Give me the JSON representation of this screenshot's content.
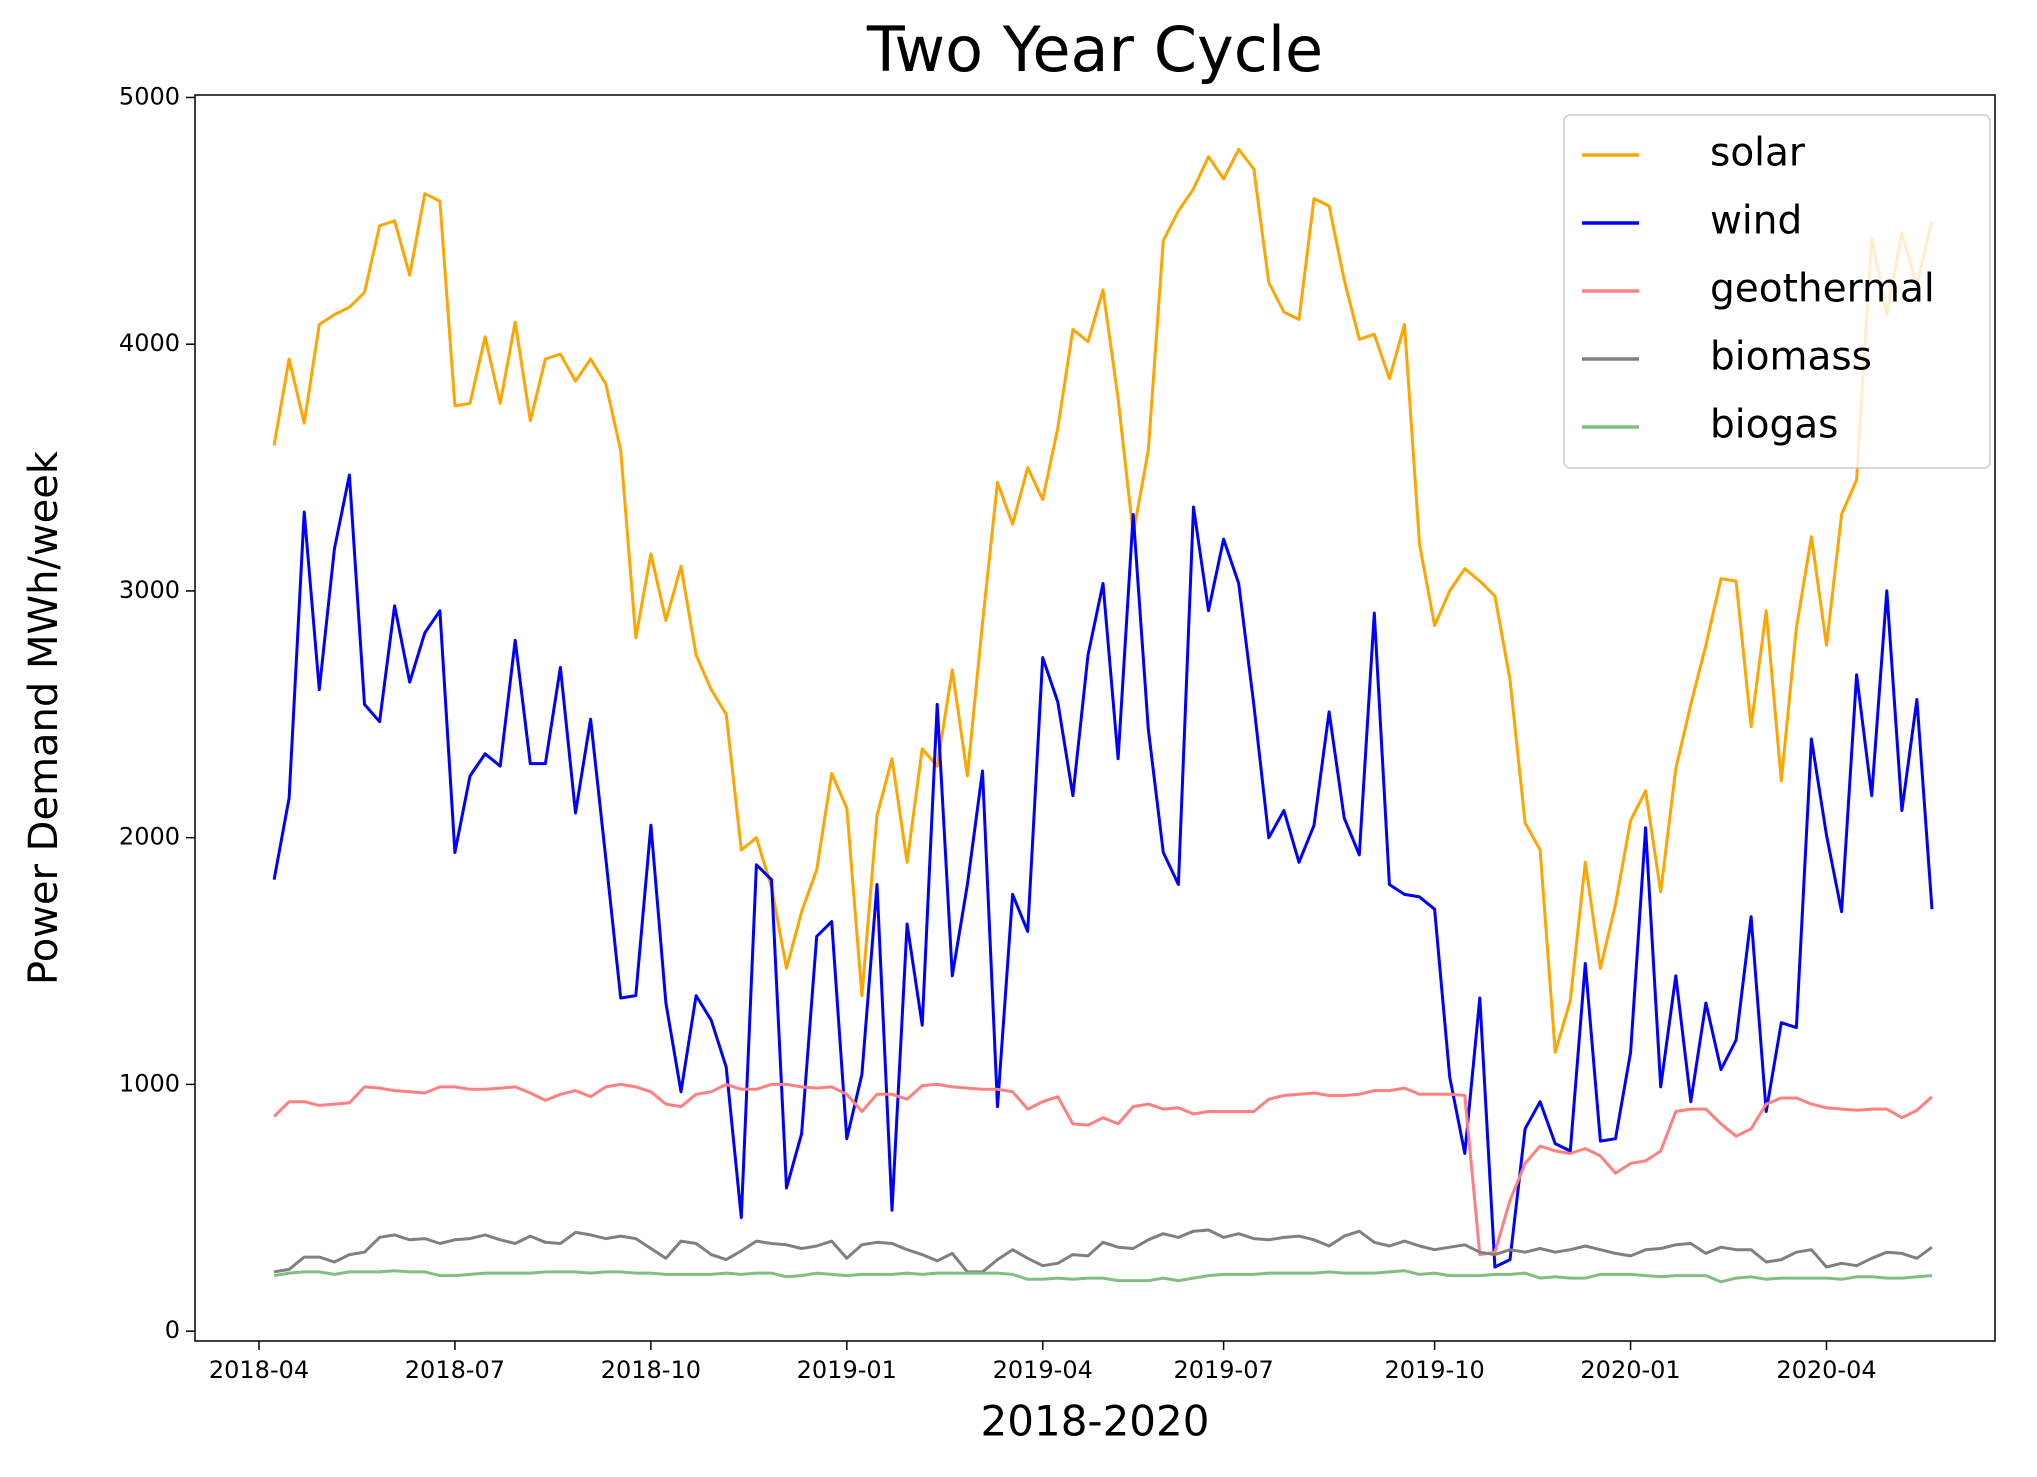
{
  "chart_data": {
    "type": "line",
    "title": "Two Year Cycle",
    "x_label": "2018-2020",
    "y_label": "Power Demand MWh/week",
    "categories": [
      "2018-04",
      null,
      null,
      null,
      null,
      null,
      null,
      null,
      null,
      null,
      null,
      null,
      null,
      "2018-07",
      null,
      null,
      null,
      null,
      null,
      null,
      null,
      null,
      null,
      null,
      null,
      null,
      "2018-10",
      null,
      null,
      null,
      null,
      null,
      null,
      null,
      null,
      null,
      null,
      null,
      null,
      "2019-01",
      null,
      null,
      null,
      null,
      null,
      null,
      null,
      null,
      null,
      null,
      null,
      null,
      "2019-04",
      null,
      null,
      null,
      null,
      null,
      null,
      null,
      null,
      null,
      null,
      null,
      "2019-07",
      null,
      null,
      null,
      null,
      null,
      null,
      null,
      null,
      null,
      null,
      null,
      null,
      null,
      "2019-10",
      null,
      null,
      null,
      null,
      null,
      null,
      null,
      null,
      null,
      null,
      null,
      null,
      "2020-01",
      null,
      null,
      null,
      null,
      null,
      null,
      null,
      null,
      null,
      null,
      null,
      null,
      "2020-04",
      null,
      null,
      null,
      null,
      null,
      null,
      null
    ],
    "series": [
      {
        "name": "solar",
        "color": "#ffa500",
        "values": [
          null,
          3590,
          3940,
          3680,
          4080,
          4120,
          4150,
          4210,
          4480,
          4500,
          4280,
          4610,
          4580,
          3750,
          3760,
          4030,
          3760,
          4090,
          3690,
          3940,
          3960,
          3850,
          3940,
          3840,
          3570,
          2810,
          3150,
          2880,
          3100,
          2740,
          2600,
          2500,
          1950,
          2000,
          1800,
          1470,
          1700,
          1870,
          2260,
          2120,
          1360,
          2090,
          2320,
          1900,
          2360,
          2290,
          2680,
          2250,
          2870,
          3440,
          3270,
          3500,
          3370,
          3660,
          4060,
          4010,
          4220,
          3780,
          3230,
          3570,
          4420,
          4540,
          4630,
          4760,
          4670,
          4790,
          4710,
          4250,
          4130,
          4100,
          4590,
          4560,
          4260,
          4020,
          4040,
          3860,
          4080,
          3190,
          2860,
          3000,
          3090,
          3040,
          2980,
          2640,
          2060,
          1950,
          1130,
          1340,
          1900,
          1470,
          1730,
          2070,
          2190,
          1780,
          2280,
          2540,
          2780,
          3050,
          3040,
          2450,
          2920,
          2230,
          2850,
          3220,
          2780,
          3310,
          3450,
          4430,
          4120,
          4450,
          4240,
          4500
        ]
      },
      {
        "name": "wind",
        "color": "#0000ff",
        "values": [
          null,
          1830,
          2160,
          3320,
          2600,
          3170,
          3470,
          2540,
          2470,
          2940,
          2630,
          2830,
          2920,
          1940,
          2250,
          2340,
          2290,
          2800,
          2300,
          2300,
          2690,
          2100,
          2480,
          1920,
          1350,
          1360,
          2050,
          1330,
          970,
          1360,
          1260,
          1070,
          460,
          1890,
          1830,
          580,
          800,
          1600,
          1660,
          780,
          1040,
          1810,
          490,
          1650,
          1240,
          2540,
          1440,
          1810,
          2270,
          910,
          1770,
          1620,
          2730,
          2550,
          2170,
          2740,
          3030,
          2320,
          3310,
          2440,
          1940,
          1810,
          3340,
          2920,
          3210,
          3030,
          2540,
          2000,
          2110,
          1900,
          2050,
          2510,
          2080,
          1930,
          2910,
          1810,
          1770,
          1760,
          1710,
          1030,
          720,
          1350,
          260,
          290,
          820,
          930,
          760,
          730,
          1490,
          770,
          780,
          1130,
          2040,
          990,
          1440,
          930,
          1330,
          1060,
          1180,
          1680,
          890,
          1250,
          1230,
          2400,
          2010,
          1700,
          2660,
          2170,
          3000,
          2110,
          2560,
          1710
        ]
      },
      {
        "name": "geothermal",
        "color": "#ff8080",
        "values": [
          null,
          870,
          930,
          930,
          915,
          920,
          925,
          990,
          985,
          975,
          970,
          965,
          990,
          990,
          980,
          980,
          985,
          990,
          965,
          935,
          960,
          975,
          950,
          990,
          1000,
          990,
          970,
          920,
          910,
          960,
          970,
          1000,
          980,
          980,
          1000,
          1000,
          990,
          985,
          990,
          960,
          890,
          960,
          960,
          940,
          995,
          1000,
          990,
          985,
          980,
          980,
          970,
          900,
          930,
          950,
          840,
          835,
          865,
          840,
          910,
          920,
          900,
          905,
          880,
          890,
          890,
          890,
          890,
          940,
          955,
          960,
          965,
          955,
          955,
          960,
          975,
          975,
          985,
          960,
          960,
          960,
          955,
          310,
          320,
          530,
          680,
          750,
          730,
          720,
          740,
          710,
          640,
          680,
          690,
          730,
          890,
          900,
          900,
          840,
          790,
          820,
          920,
          945,
          945,
          920,
          905,
          900,
          895,
          900,
          900,
          865,
          895,
          950
        ]
      },
      {
        "name": "biomass",
        "color": "#808080",
        "values": [
          null,
          240,
          250,
          300,
          300,
          280,
          310,
          320,
          380,
          390,
          370,
          375,
          355,
          370,
          375,
          390,
          370,
          355,
          385,
          360,
          355,
          400,
          390,
          375,
          385,
          375,
          335,
          295,
          365,
          355,
          310,
          290,
          325,
          365,
          355,
          350,
          335,
          345,
          365,
          295,
          350,
          360,
          355,
          330,
          310,
          285,
          315,
          240,
          240,
          290,
          330,
          295,
          265,
          275,
          310,
          305,
          360,
          340,
          335,
          370,
          395,
          380,
          405,
          410,
          380,
          395,
          375,
          370,
          380,
          385,
          370,
          345,
          385,
          405,
          360,
          345,
          365,
          345,
          330,
          340,
          350,
          320,
          310,
          330,
          320,
          335,
          320,
          330,
          345,
          330,
          315,
          305,
          330,
          335,
          350,
          355,
          315,
          340,
          330,
          330,
          280,
          290,
          320,
          330,
          260,
          275,
          265,
          295,
          320,
          315,
          295,
          340
        ]
      },
      {
        "name": "biogas",
        "color": "#80bf80",
        "values": [
          null,
          225,
          235,
          240,
          240,
          230,
          240,
          240,
          240,
          245,
          240,
          240,
          225,
          225,
          230,
          235,
          235,
          235,
          235,
          240,
          240,
          240,
          235,
          240,
          240,
          235,
          235,
          230,
          230,
          230,
          230,
          235,
          230,
          235,
          235,
          220,
          225,
          235,
          230,
          225,
          230,
          230,
          230,
          235,
          230,
          235,
          235,
          235,
          235,
          235,
          230,
          210,
          210,
          215,
          210,
          215,
          215,
          205,
          205,
          205,
          215,
          205,
          215,
          225,
          230,
          230,
          230,
          235,
          235,
          235,
          235,
          240,
          235,
          235,
          235,
          240,
          245,
          230,
          235,
          225,
          225,
          225,
          230,
          230,
          235,
          215,
          220,
          215,
          215,
          230,
          230,
          230,
          225,
          220,
          225,
          225,
          225,
          200,
          215,
          220,
          210,
          215,
          215,
          215,
          215,
          210,
          220,
          220,
          215,
          215,
          220,
          225
        ]
      }
    ],
    "ylim": [
      -40,
      5010
    ],
    "yticks": [
      0,
      1000,
      2000,
      3000,
      4000,
      5000
    ],
    "grid": false,
    "legend": "upper right"
  }
}
